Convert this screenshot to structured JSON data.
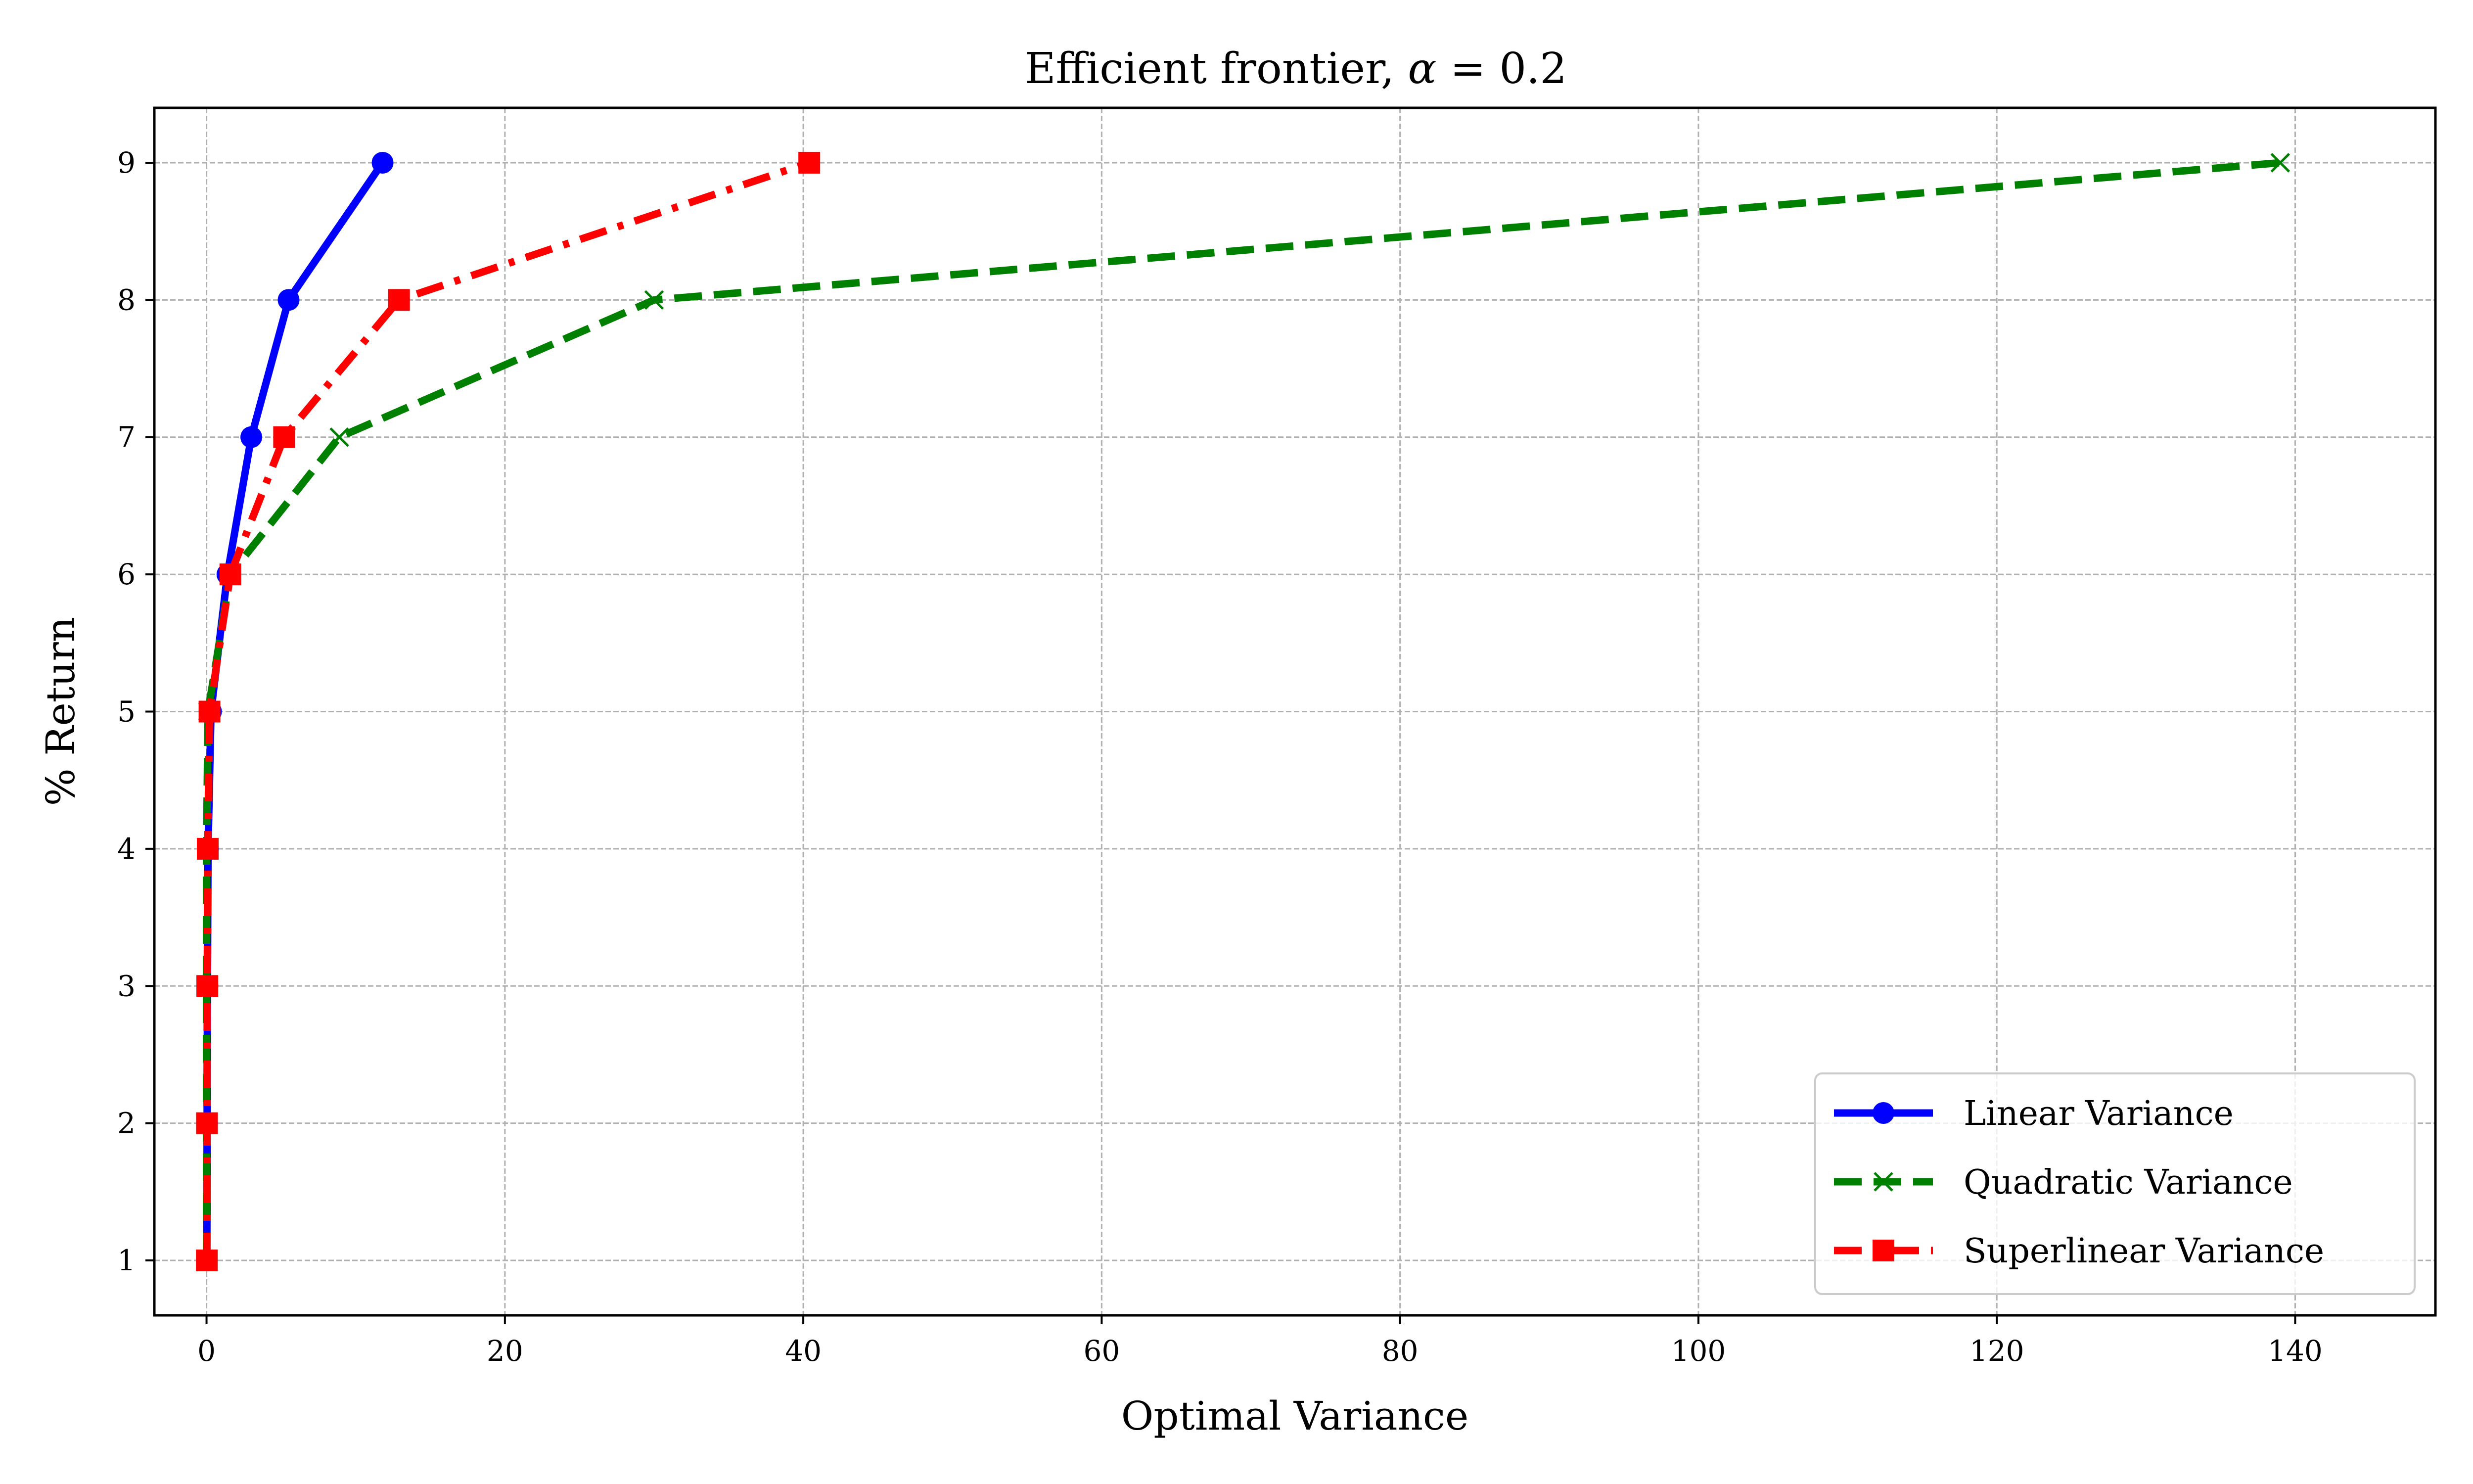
{
  "chart_data": {
    "type": "line",
    "title": "Efficient frontier, α = 0.2",
    "title_prefix": "Efficient frontier, ",
    "title_symbol": "α",
    "title_suffix": " = 0.2",
    "xlabel": "Optimal Variance",
    "ylabel": "% Return",
    "xlim": [
      -3.5,
      149.4
    ],
    "ylim": [
      0.6,
      9.4
    ],
    "xticks": [
      0,
      20,
      40,
      60,
      80,
      100,
      120,
      140
    ],
    "yticks": [
      1,
      2,
      3,
      4,
      5,
      6,
      7,
      8,
      9
    ],
    "grid": true,
    "legend_position": "lower-right",
    "series": [
      {
        "name": "Linear Variance",
        "color": "#0000ff",
        "linestyle": "solid",
        "marker": "circle",
        "x": [
          0.02,
          0.04,
          0.06,
          0.1,
          0.3,
          1.4,
          3.0,
          5.5,
          11.8
        ],
        "y": [
          1,
          2,
          3,
          4,
          5,
          6,
          7,
          8,
          9
        ]
      },
      {
        "name": "Quadratic Variance",
        "color": "#008000",
        "linestyle": "dashed",
        "marker": "x",
        "x": [
          0.0,
          0.0,
          0.0,
          0.0,
          0.1,
          1.6,
          8.9,
          30.0,
          139.0
        ],
        "y": [
          1,
          2,
          3,
          4,
          5,
          6,
          7,
          8,
          9
        ]
      },
      {
        "name": "Superlinear Variance",
        "color": "#ff0000",
        "linestyle": "dashdot",
        "marker": "square",
        "x": [
          0.02,
          0.03,
          0.05,
          0.08,
          0.2,
          1.6,
          5.2,
          12.9,
          40.4
        ],
        "y": [
          1,
          2,
          3,
          4,
          5,
          6,
          7,
          8,
          9
        ]
      }
    ]
  }
}
